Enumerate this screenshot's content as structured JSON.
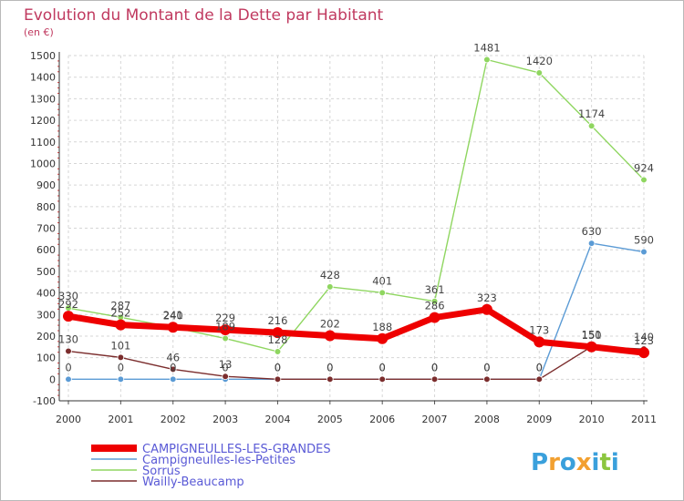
{
  "chart_data": {
    "type": "line",
    "title": "Evolution du Montant de la Dette par Habitant",
    "subtitle": "(en €)",
    "x": [
      "2000",
      "2001",
      "2002",
      "2003",
      "2004",
      "2005",
      "2006",
      "2007",
      "2008",
      "2009",
      "2010",
      "2011"
    ],
    "ylim": [
      -100,
      1500
    ],
    "yticks": [
      -100,
      0,
      100,
      200,
      300,
      400,
      500,
      600,
      700,
      800,
      900,
      1000,
      1100,
      1200,
      1300,
      1400,
      1500
    ],
    "grid": true,
    "legend_position": "bottom-left",
    "series": [
      {
        "name": "Campigneulles-les-Petites",
        "color": "#5b9bd5",
        "values": [
          0,
          0,
          0,
          0,
          0,
          0,
          0,
          0,
          0,
          0,
          630,
          590
        ],
        "labels": [
          "0",
          "0",
          "0",
          "0",
          "0",
          "0",
          "0",
          "0",
          "0",
          "0",
          "630",
          "590"
        ]
      },
      {
        "name": "Sorrus",
        "color": "#8fd660",
        "values": [
          330,
          287,
          240,
          189,
          128,
          428,
          401,
          361,
          1481,
          1420,
          1174,
          924
        ],
        "labels": [
          "330",
          "287",
          "240",
          "189",
          "128",
          "428",
          "401",
          "361",
          "1481",
          "1420",
          "1174",
          "924"
        ]
      },
      {
        "name": "Wailly-Beaucamp",
        "color": "#7b2d2d",
        "values": [
          130,
          101,
          46,
          13,
          0,
          0,
          0,
          0,
          0,
          0,
          151,
          140
        ],
        "labels": [
          "130",
          "101",
          "46",
          "13",
          "0",
          "0",
          "0",
          "0",
          "0",
          "0",
          "151",
          "140"
        ]
      },
      {
        "name": "CAMPIGNEULLES-LES-GRANDES",
        "color": "#ee0000",
        "values": [
          292,
          252,
          241,
          229,
          216,
          202,
          188,
          286,
          323,
          173,
          150,
          123
        ],
        "labels": [
          "292",
          "252",
          "241",
          "229",
          "216",
          "202",
          "188",
          "286",
          "323",
          "173",
          "150",
          "123"
        ]
      }
    ],
    "legend": [
      "CAMPIGNEULLES-LES-GRANDES",
      "Campigneulles-les-Petites",
      "Sorrus",
      "Wailly-Beaucamp"
    ]
  },
  "logo": {
    "letters": [
      "P",
      "r",
      "o",
      "x",
      "i",
      "t",
      "i"
    ],
    "colors": [
      "#3aa0dc",
      "#f2a030",
      "#3aa0dc",
      "#f2a030",
      "#3aa0dc",
      "#8cc63f",
      "#3aa0dc"
    ]
  }
}
